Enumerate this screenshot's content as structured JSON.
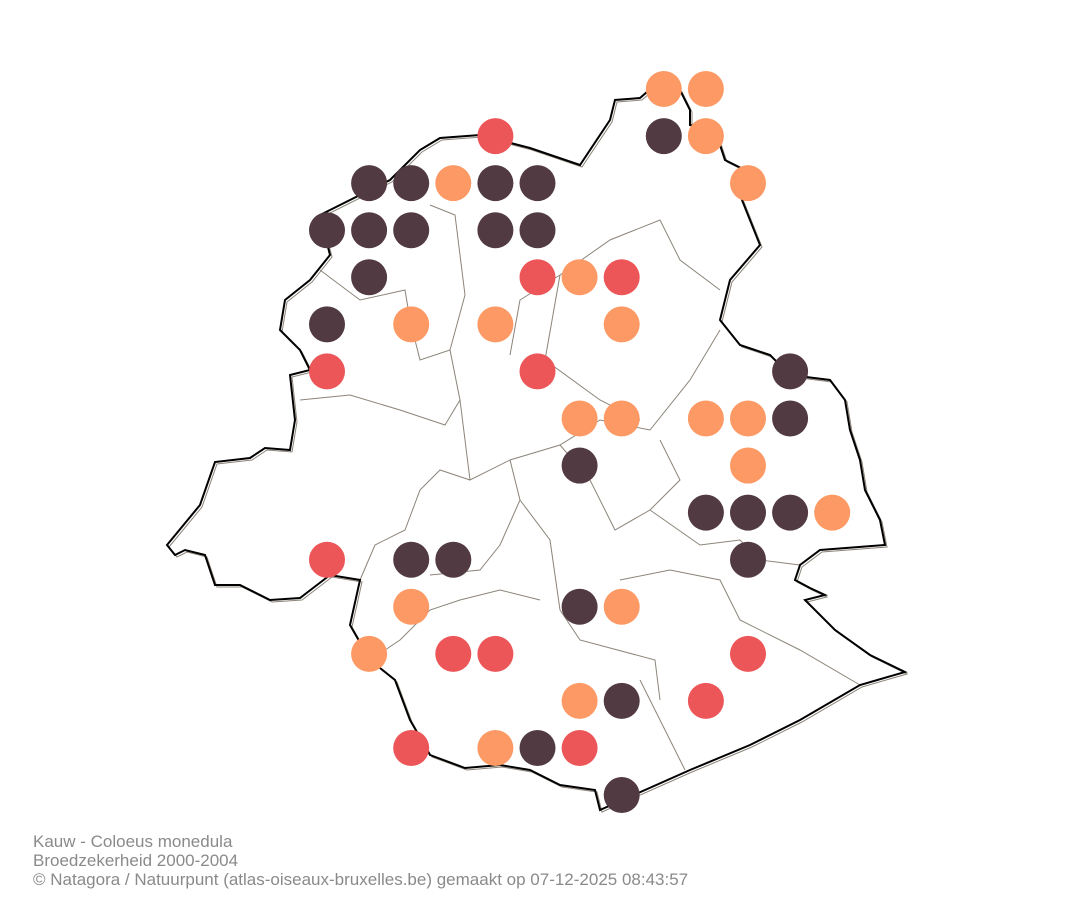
{
  "colors": {
    "possible": "#FC9964",
    "probable": "#EC5658",
    "certain": "#523A43",
    "boundary": "#000000",
    "municipality_lines": "#8c8479"
  },
  "caption": {
    "species": "Kauw - Coloeus monedula",
    "subtitle": "Broedzekerheid 2000-2004",
    "credit": "© Natagora / Natuurpunt (atlas-oiseaux-bruxelles.be) gemaakt op 07-12-2025 08:43:57"
  }
}
